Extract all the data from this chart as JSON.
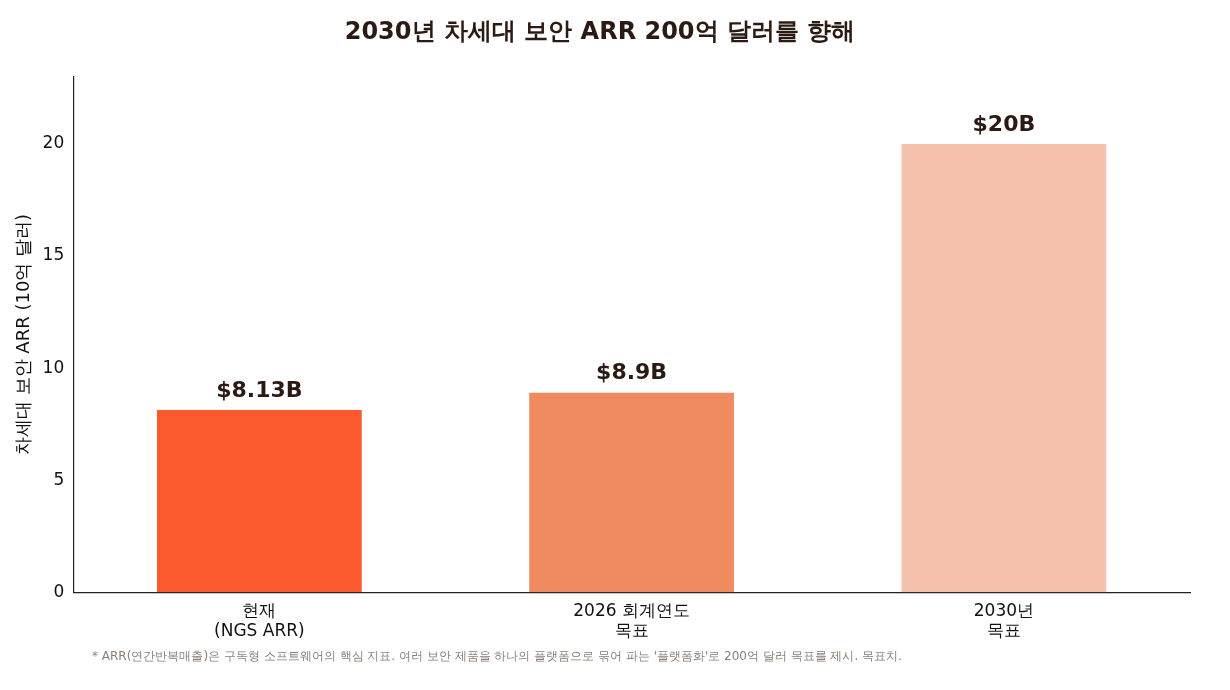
{
  "chart_data": {
    "type": "bar",
    "title": "2030년 차세대 보안 ARR 200억 달러를 향해",
    "ylabel": "차세대 보안 ARR (10억 달러)",
    "categories": [
      "현재\n(NGS ARR)",
      "2026 회계연도\n목표",
      "2030년\n목표"
    ],
    "values": [
      8.13,
      8.9,
      20
    ],
    "colors": [
      "#fa5a2d",
      "#f08b60",
      "#f5c2ae"
    ],
    "value_labels": [
      "$8.13B",
      "$8.9B",
      "$20B"
    ],
    "ylim": [
      0,
      23
    ],
    "yticks": [
      0,
      5,
      10,
      15,
      20
    ],
    "grid": false,
    "legend": false,
    "annotations": [
      "* ARR(연간반복매출)은 구독형 소프트웨어의 핵심 지표. 여러 보안 제품을 하나의 플랫폼으로 묶어 파는 '플랫폼화'로 200억 달러 목표를 제시. 목표치."
    ]
  }
}
